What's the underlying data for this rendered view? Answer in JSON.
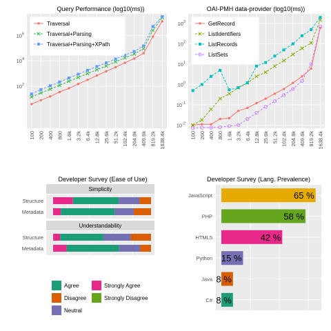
{
  "colors": {
    "panel_bg": "#ebebeb",
    "grid": "#ffffff",
    "strip_bg": "#d9d9d9"
  },
  "chart_data": [
    {
      "id": "query",
      "type": "line",
      "title": "Query Performance (log10(ms))",
      "xlabel": "",
      "ylabel": "",
      "yscale": "log10",
      "ylim": [
        0.05,
        50000000
      ],
      "y_ticks": [
        {
          "value": 100,
          "label": "10",
          "sup": "2"
        },
        {
          "value": 10000,
          "label": "10",
          "sup": "4"
        },
        {
          "value": 1000000,
          "label": "10",
          "sup": "6"
        }
      ],
      "x": [
        "100",
        "200",
        "400",
        "800",
        "1.6k",
        "3.2k",
        "6.4k",
        "12.8k",
        "25.6k",
        "51.2k",
        "102.4k",
        "204.8k",
        "409.6k",
        "819.2k",
        "1638.4k"
      ],
      "grid": true,
      "legend_position": "top-left",
      "series": [
        {
          "name": "Traversal",
          "color": "#f8766d",
          "marker": "dot",
          "values": [
            4,
            8,
            16,
            35,
            70,
            150,
            320,
            700,
            1500,
            3200,
            7000,
            15000,
            40000,
            800000,
            13000000
          ]
        },
        {
          "name": "Traversal+Parsing",
          "color": "#33b84a",
          "marker": "x",
          "values": [
            15,
            30,
            60,
            120,
            250,
            500,
            1000,
            2000,
            4000,
            8500,
            17000,
            35000,
            90000,
            2500000,
            25000000
          ]
        },
        {
          "name": "Traversal+Parsing+XPath",
          "color": "#619cff",
          "marker": "square",
          "values": [
            25,
            55,
            110,
            220,
            450,
            900,
            1800,
            3600,
            7000,
            14000,
            28000,
            55000,
            150000,
            5000000,
            30000000
          ]
        }
      ]
    },
    {
      "id": "oai",
      "type": "line",
      "title": "OAI-PMH data-provider (log10(ms))",
      "xlabel": "",
      "ylabel": "",
      "yscale": "log10",
      "ylim": [
        0.007,
        3000
      ],
      "y_ticks": [
        {
          "value": 0.01,
          "label": "10",
          "sup": "-2"
        },
        {
          "value": 0.1,
          "label": "10",
          "sup": "-1"
        },
        {
          "value": 1,
          "label": "10",
          "sup": "0"
        },
        {
          "value": 10,
          "label": "10",
          "sup": "1"
        },
        {
          "value": 100,
          "label": "10",
          "sup": "2"
        },
        {
          "value": 1000,
          "label": "10",
          "sup": "3"
        }
      ],
      "x": [
        "100",
        "200",
        "400",
        "800",
        "1.6k",
        "3.2k",
        "6.4k",
        "12.8k",
        "25.6k",
        "51.2k",
        "102.4k",
        "204.8k",
        "409.6k",
        "819.2k",
        "1638.4k"
      ],
      "grid": true,
      "legend_position": "top-left",
      "series": [
        {
          "name": "GetRecord",
          "color": "#f8766d",
          "marker": "dot",
          "values": [
            0.01,
            0.011,
            0.011,
            0.02,
            0.022,
            0.05,
            0.07,
            0.12,
            0.2,
            0.35,
            0.6,
            1.2,
            2.5,
            6,
            600
          ]
        },
        {
          "name": "ListIdentifiers",
          "color": "#7cae00",
          "marker": "x",
          "values": [
            0.01,
            0.018,
            0.06,
            0.2,
            0.35,
            0.7,
            1.2,
            2.5,
            4,
            8,
            15,
            30,
            60,
            110,
            1500
          ]
        },
        {
          "name": "ListRecords",
          "color": "#00bfc4",
          "marker": "square",
          "values": [
            0.5,
            1,
            2.5,
            5,
            0.55,
            0.7,
            1.2,
            8,
            12,
            25,
            50,
            100,
            250,
            500,
            2000
          ]
        },
        {
          "name": "ListSets",
          "color": "#c77cff",
          "marker": "circle",
          "values": [
            0.007,
            0.0075,
            0.0075,
            0.008,
            0.009,
            0.01,
            0.02,
            0.04,
            0.08,
            0.15,
            0.3,
            0.6,
            1.5,
            10,
            700
          ]
        }
      ]
    },
    {
      "id": "ease",
      "type": "bar",
      "orientation": "horizontal",
      "stacked": true,
      "title": "Developer Survey (Ease of Use)",
      "xlabel": "",
      "ylabel": "",
      "facets": [
        {
          "label": "Simplicity",
          "rows": [
            {
              "label": "Structure",
              "values": [
                {
                  "k": "Strongly Agree",
                  "v": 0.19
                },
                {
                  "k": "Agree",
                  "v": 0.44
                },
                {
                  "k": "Neutral",
                  "v": 0.2
                },
                {
                  "k": "Disagree",
                  "v": 0.11
                }
              ]
            },
            {
              "label": "Metadata",
              "values": [
                {
                  "k": "Strongly Agree",
                  "v": 0.08
                },
                {
                  "k": "Agree",
                  "v": 0.56
                },
                {
                  "k": "Neutral",
                  "v": 0.2
                },
                {
                  "k": "Disagree",
                  "v": 0.18
                }
              ]
            }
          ]
        },
        {
          "label": "Understandability",
          "rows": [
            {
              "label": "Structure",
              "values": [
                {
                  "k": "Strongly Agree",
                  "v": 0.08
                },
                {
                  "k": "Agree",
                  "v": 0.49
                },
                {
                  "k": "Neutral",
                  "v": 0.31
                },
                {
                  "k": "Disagree",
                  "v": 0.23
                }
              ]
            },
            {
              "label": "Metadata",
              "values": [
                {
                  "k": "Strongly Agree",
                  "v": 0.14
                },
                {
                  "k": "Agree",
                  "v": 0.54
                },
                {
                  "k": "Neutral",
                  "v": 0.22
                },
                {
                  "k": "Disagree",
                  "v": 0.11
                }
              ]
            }
          ]
        }
      ],
      "legend_position": "bottom",
      "legend": [
        {
          "name": "Agree",
          "color": "#1b9e77"
        },
        {
          "name": "Strongly Agree",
          "color": "#e7298a"
        },
        {
          "name": "Disagree",
          "color": "#d95f02"
        },
        {
          "name": "Strongly Disagree",
          "color": "#66a61e"
        },
        {
          "name": "Neutral",
          "color": "#7570b3"
        }
      ]
    },
    {
      "id": "lang",
      "type": "bar",
      "orientation": "horizontal",
      "title": "Developer Survey (Lang. Prevalence)",
      "xlabel": "",
      "ylabel": "",
      "xlim": [
        0,
        68
      ],
      "categories": [
        "JavaScript",
        "PHP",
        "HTML5",
        "Python",
        "Java",
        "C#"
      ],
      "values": [
        65,
        58,
        42,
        15,
        8,
        8
      ],
      "labels": [
        "65 %",
        "58 %",
        "42 %",
        "15 %",
        "8 %",
        "8 %"
      ],
      "colors": [
        "#e6ab02",
        "#66a61e",
        "#e7298a",
        "#7570b3",
        "#d95f02",
        "#1b9e77"
      ],
      "grid": true
    }
  ]
}
